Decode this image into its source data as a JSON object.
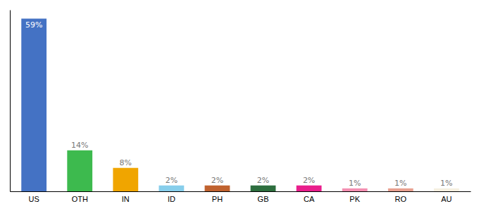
{
  "chart_data": {
    "type": "bar",
    "categories": [
      "US",
      "OTH",
      "IN",
      "ID",
      "PH",
      "GB",
      "CA",
      "PK",
      "RO",
      "AU"
    ],
    "values": [
      59,
      14,
      8,
      2,
      2,
      2,
      2,
      1,
      1,
      1
    ],
    "value_labels": [
      "59%",
      "14%",
      "8%",
      "2%",
      "2%",
      "2%",
      "2%",
      "1%",
      "1%",
      "1%"
    ],
    "colors": [
      "#4472c4",
      "#3dba4e",
      "#f0a500",
      "#87ceeb",
      "#c0622f",
      "#2d6e3e",
      "#e91e8c",
      "#f48fb1",
      "#e8a090",
      "#f5f0e0"
    ],
    "data_labels": true,
    "ylim": [
      0,
      62
    ],
    "tick_labels": "x"
  }
}
